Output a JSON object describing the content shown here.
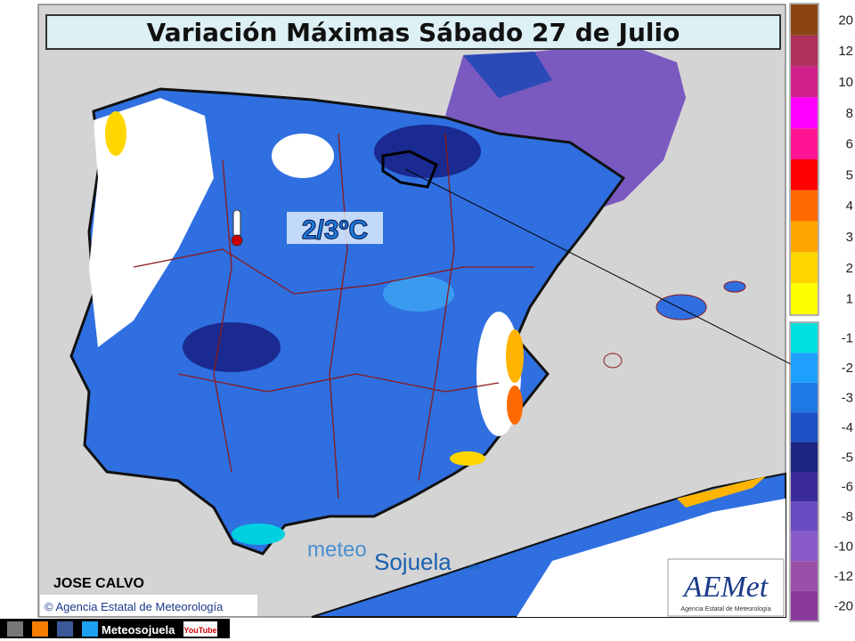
{
  "title": "Variación Máximas Sábado 27 de Julio",
  "annotation": "2/3ºC",
  "legend": {
    "positive": [
      {
        "label": "20",
        "color": "#8b4513"
      },
      {
        "label": "12",
        "color": "#b0305e"
      },
      {
        "label": "10",
        "color": "#d0208a"
      },
      {
        "label": "8",
        "color": "#ff00ff"
      },
      {
        "label": "6",
        "color": "#ff1493"
      },
      {
        "label": "5",
        "color": "#ff0000"
      },
      {
        "label": "4",
        "color": "#ff6a00"
      },
      {
        "label": "3",
        "color": "#ffa500"
      },
      {
        "label": "2",
        "color": "#ffd700"
      },
      {
        "label": "1",
        "color": "#ffff00"
      }
    ],
    "negative": [
      {
        "label": "-1",
        "color": "#00e0e0"
      },
      {
        "label": "-2",
        "color": "#1ea0ff"
      },
      {
        "label": "-3",
        "color": "#1e78e6"
      },
      {
        "label": "-4",
        "color": "#1e50c8"
      },
      {
        "label": "-5",
        "color": "#1a2580"
      },
      {
        "label": "-6",
        "color": "#3a2a9a"
      },
      {
        "label": "-8",
        "color": "#6a4ac0"
      },
      {
        "label": "-10",
        "color": "#8a5ac8"
      },
      {
        "label": "-12",
        "color": "#9a50a8"
      },
      {
        "label": "-20",
        "color": "#8a3a9a"
      }
    ]
  },
  "author": "JOSE CALVO",
  "credit": "© Agencia Estatal de Meteorología",
  "watermark": {
    "meteo": "meteo",
    "sojuela": "Sojuela",
    "domain": ".es"
  },
  "logo": {
    "name": "AEMet",
    "subtitle": "Agencia Estatal de Meteorología"
  },
  "footer": {
    "brand": "Meteosojuela",
    "youtube": "YouTube"
  }
}
